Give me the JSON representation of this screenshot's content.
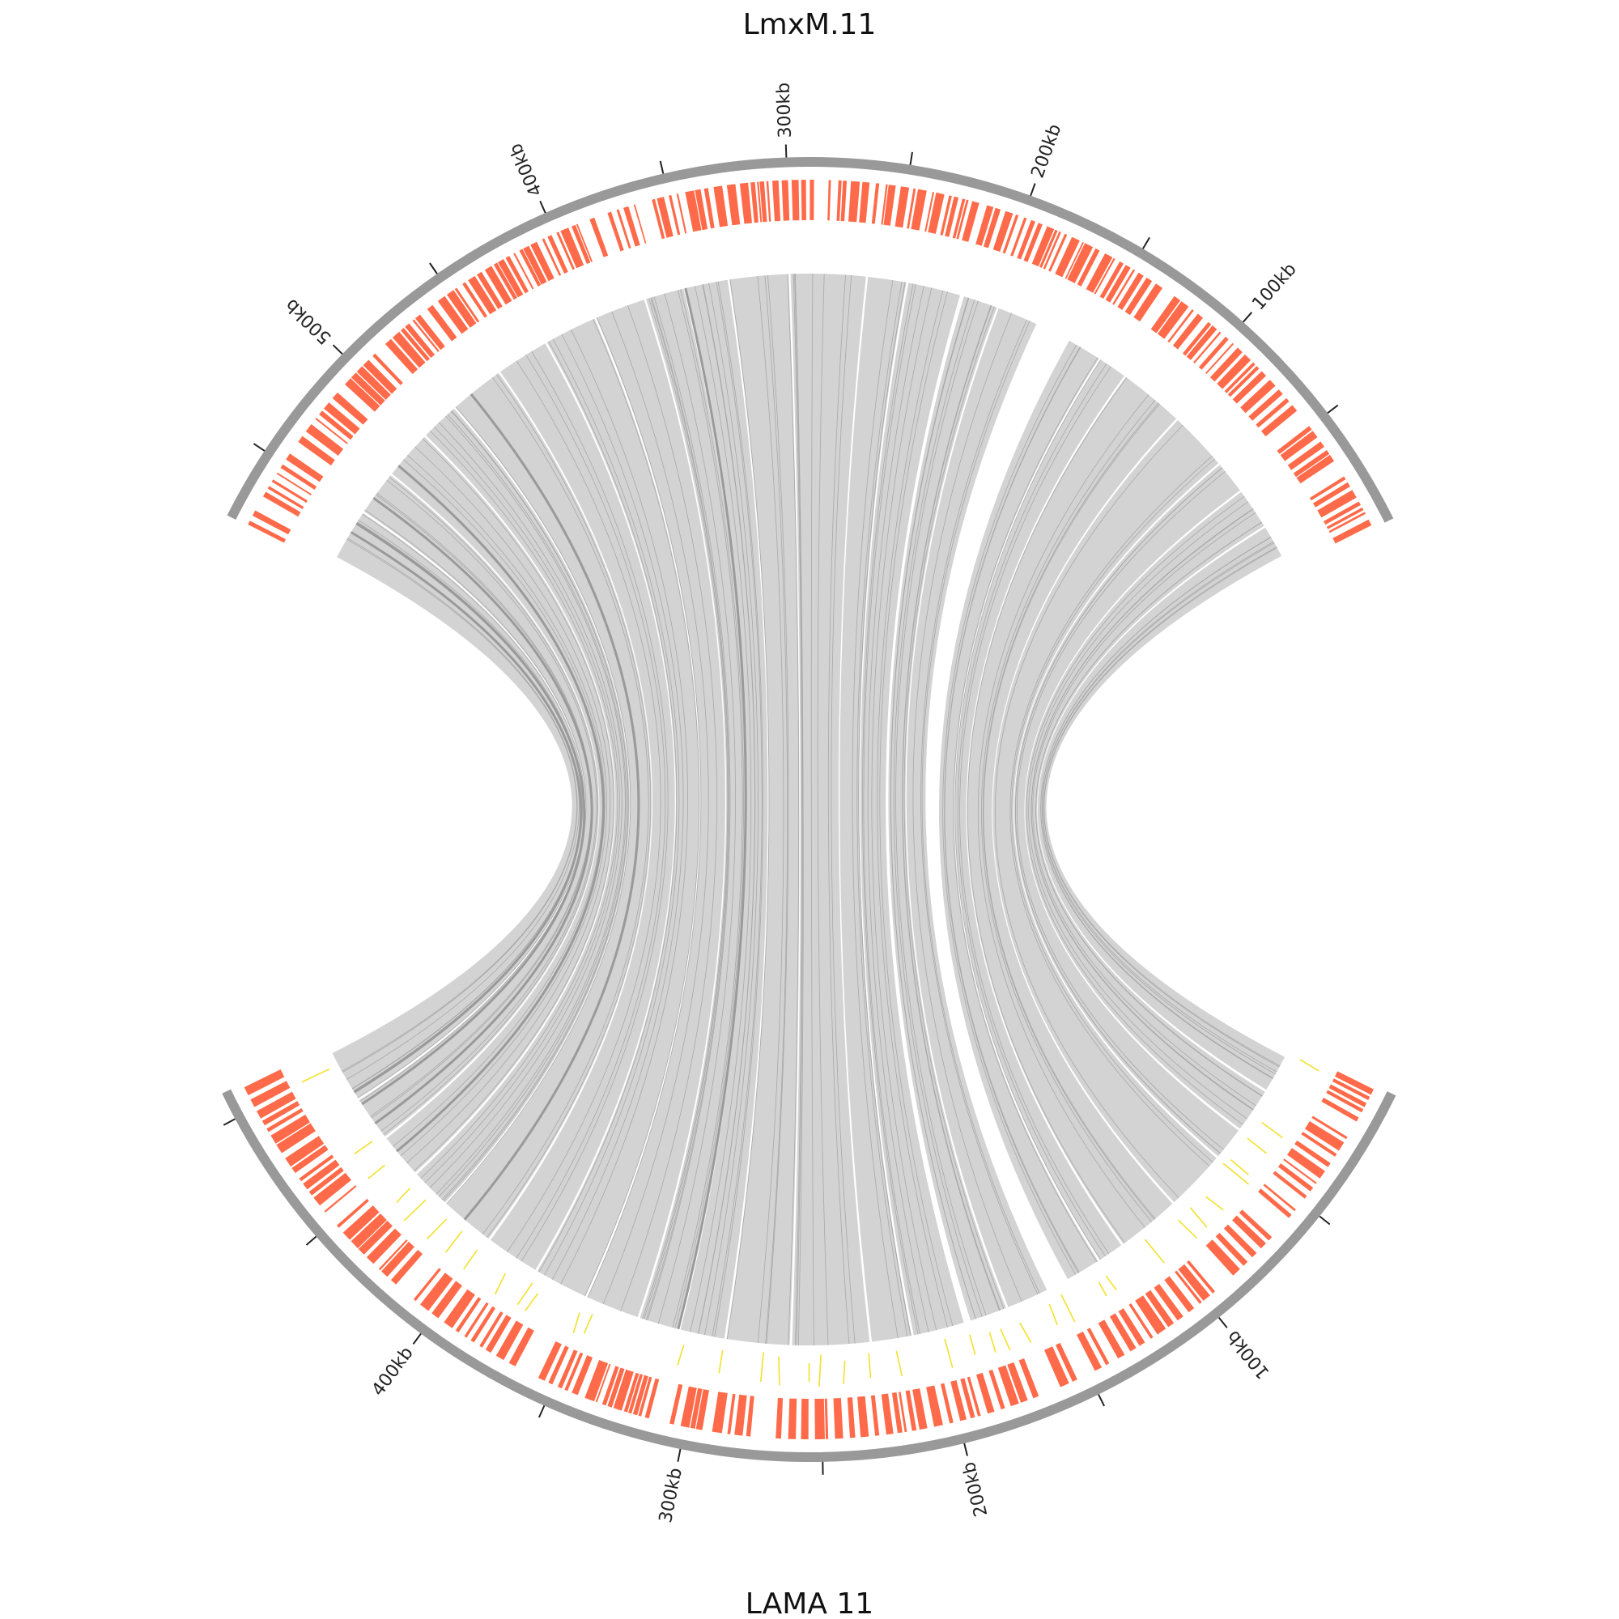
{
  "titles": {
    "top": "LmxM.11",
    "bottom": "LAMA   11"
  },
  "chart_data": {
    "type": "circos-synteny",
    "chromosomes": [
      {
        "id": "top",
        "name": "LmxM.11",
        "length_kb": 580,
        "tick_labels": [
          "100kb",
          "200kb",
          "300kb",
          "400kb",
          "500kb"
        ]
      },
      {
        "id": "bottom",
        "name": "LAMA   11",
        "length_kb": 510,
        "tick_labels": [
          "100kb",
          "200kb",
          "300kb",
          "400kb"
        ]
      }
    ],
    "tracks": [
      "genes",
      "small-features",
      "synteny-links"
    ],
    "colors": {
      "ideogram": "#999999",
      "gene": "#ff6b4a",
      "small_feature": "#f2e12a",
      "link": "#d3d3d3",
      "link_line": "#a8a8a8",
      "link_dark": "#9a9a9a",
      "tick": "#222222",
      "gene_gap": "#5bc0de"
    }
  }
}
